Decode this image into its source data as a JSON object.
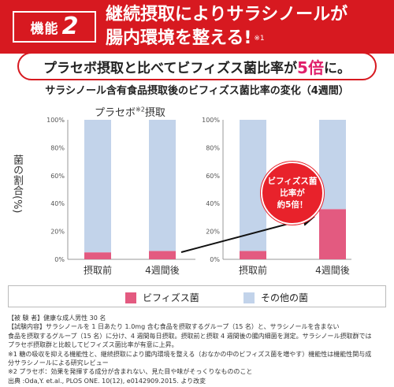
{
  "header": {
    "badge_label": "機能",
    "badge_number": "2",
    "title_line1": "継続摂取によりサラシノールが",
    "title_line2": "腸内環境を整える!",
    "title_note": "※1"
  },
  "banner": {
    "text_before": "プラセボ摂取と比べてビフィズス菌比率が",
    "highlight": "5倍",
    "text_after": "に。"
  },
  "subtitle": "サラシノール含有食品摂取後のビフィズス菌比率の変化（4週間）",
  "placebo_title": "プラセボ",
  "placebo_note": "※2",
  "placebo_title_suffix": "摂取",
  "callout": {
    "line1": "ビフィズス菌",
    "line2": "比率が",
    "line3": "約5倍！"
  },
  "legend": {
    "bifido": "ビフィズス菌",
    "other": "その他の菌"
  },
  "notes": [
    "【被 験 者】健康な成人男性 30 名",
    "【試験内容】サラシノールを 1 日あたり 1.0mg 含む食品を摂取するグループ（15 名）と、サラシノールを含まない",
    "食品を摂取するグループ（15 名）に分け、4 週間毎日摂取。摂取前と摂取 4 週間後の腸内細菌を測定。サラシノール摂取群では",
    "プラセボ摂取群と比較してビフィズス菌比率が有意に上昇。",
    "※1 糖の吸収を抑える機能性と、継続摂取により腸内環境を整える（おなかの中のビフィズス菌を増やす）機能性は機能性関与成",
    "分サラシノールによる研究レビュー",
    "※2 プラセボ：効果を発揮する成分が含まれない、見た目や味がそっくりなもののこと",
    "出典 :Oda,Y. et.al., PLOS ONE. 10(12), e0142909.2015. より改変"
  ],
  "colors": {
    "bifido": "#e35a80",
    "other": "#c2d3ea",
    "accent": "#d71920"
  },
  "chart_data": [
    {
      "type": "bar",
      "stacked": true,
      "title": "",
      "ylabel": "菌の割合(%)",
      "ylim": [
        0,
        100
      ],
      "yticks": [
        "0%",
        "20%",
        "40%",
        "60%",
        "80%",
        "100%"
      ],
      "categories": [
        "摂取前",
        "4週間後"
      ],
      "series": [
        {
          "name": "ビフィズス菌",
          "values": [
            5,
            6
          ]
        },
        {
          "name": "その他の菌",
          "values": [
            95,
            94
          ]
        }
      ]
    },
    {
      "type": "bar",
      "stacked": true,
      "title": "",
      "ylabel": "",
      "ylim": [
        0,
        100
      ],
      "yticks": [
        "0%",
        "20%",
        "40%",
        "60%",
        "80%",
        "100%"
      ],
      "categories": [
        "摂取前",
        "4週間後"
      ],
      "series": [
        {
          "name": "ビフィズス菌",
          "values": [
            6,
            36
          ]
        },
        {
          "name": "その他の菌",
          "values": [
            94,
            64
          ]
        }
      ]
    }
  ]
}
